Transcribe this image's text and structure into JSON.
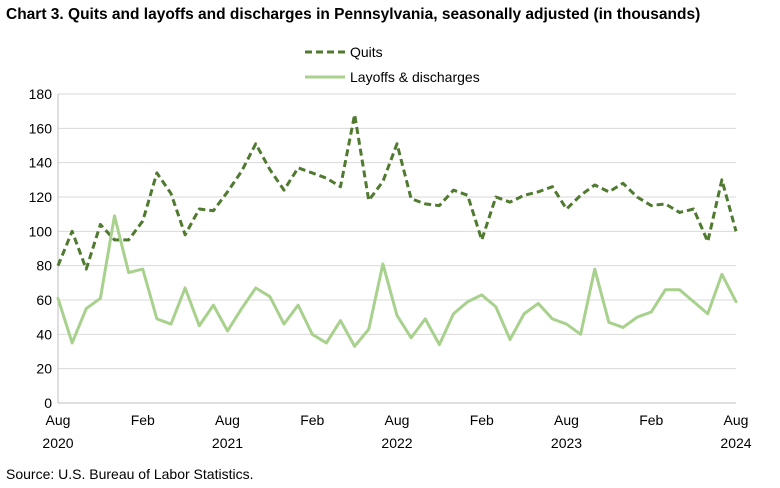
{
  "chart_data": {
    "type": "line",
    "title": "Chart 3. Quits and layoffs and discharges in Pennsylvania, seasonally adjusted (in thousands)",
    "source": "Source: U.S. Bureau of Labor Statistics.",
    "x": [
      "2020-08",
      "2020-09",
      "2020-10",
      "2020-11",
      "2020-12",
      "2021-01",
      "2021-02",
      "2021-03",
      "2021-04",
      "2021-05",
      "2021-06",
      "2021-07",
      "2021-08",
      "2021-09",
      "2021-10",
      "2021-11",
      "2021-12",
      "2022-01",
      "2022-02",
      "2022-03",
      "2022-04",
      "2022-05",
      "2022-06",
      "2022-07",
      "2022-08",
      "2022-09",
      "2022-10",
      "2022-11",
      "2022-12",
      "2023-01",
      "2023-02",
      "2023-03",
      "2023-04",
      "2023-05",
      "2023-06",
      "2023-07",
      "2023-08",
      "2023-09",
      "2023-10",
      "2023-11",
      "2023-12",
      "2024-01",
      "2024-02",
      "2024-03",
      "2024-04",
      "2024-05",
      "2024-06",
      "2024-07",
      "2024-08"
    ],
    "x_tick_labels": [
      {
        "x": "2020-08",
        "month": "Aug",
        "year": "2020"
      },
      {
        "x": "2021-02",
        "month": "Feb",
        "year": ""
      },
      {
        "x": "2021-08",
        "month": "Aug",
        "year": "2021"
      },
      {
        "x": "2022-02",
        "month": "Feb",
        "year": ""
      },
      {
        "x": "2022-08",
        "month": "Aug",
        "year": "2022"
      },
      {
        "x": "2023-02",
        "month": "Feb",
        "year": ""
      },
      {
        "x": "2023-08",
        "month": "Aug",
        "year": "2023"
      },
      {
        "x": "2024-02",
        "month": "Feb",
        "year": ""
      },
      {
        "x": "2024-08",
        "month": "Aug",
        "year": "2024"
      }
    ],
    "ylim": [
      0,
      180
    ],
    "y_ticks": [
      0,
      20,
      40,
      60,
      80,
      100,
      120,
      140,
      160,
      180
    ],
    "grid": "horizontal",
    "legend_position": "top-center",
    "series": [
      {
        "name": "Quits",
        "style": "dashed",
        "color": "#4f7a30",
        "values": [
          80,
          100,
          78,
          104,
          95,
          95,
          106,
          134,
          122,
          98,
          113,
          112,
          123,
          135,
          151,
          136,
          124,
          137,
          134,
          131,
          126,
          168,
          118,
          129,
          151,
          119,
          116,
          115,
          124,
          121,
          95,
          120,
          117,
          121,
          123,
          126,
          113,
          121,
          127,
          123,
          128,
          120,
          115,
          116,
          111,
          113,
          94,
          130,
          100
        ]
      },
      {
        "name": "Layoffs & discharges",
        "style": "solid",
        "color": "#a9d18e",
        "values": [
          61,
          35,
          55,
          61,
          109,
          76,
          78,
          49,
          46,
          67,
          45,
          57,
          42,
          55,
          67,
          62,
          46,
          57,
          40,
          35,
          48,
          33,
          43,
          81,
          51,
          38,
          49,
          34,
          52,
          59,
          63,
          56,
          37,
          52,
          58,
          49,
          46,
          40,
          78,
          47,
          44,
          50,
          53,
          66,
          66,
          59,
          52,
          75,
          59
        ]
      }
    ]
  }
}
